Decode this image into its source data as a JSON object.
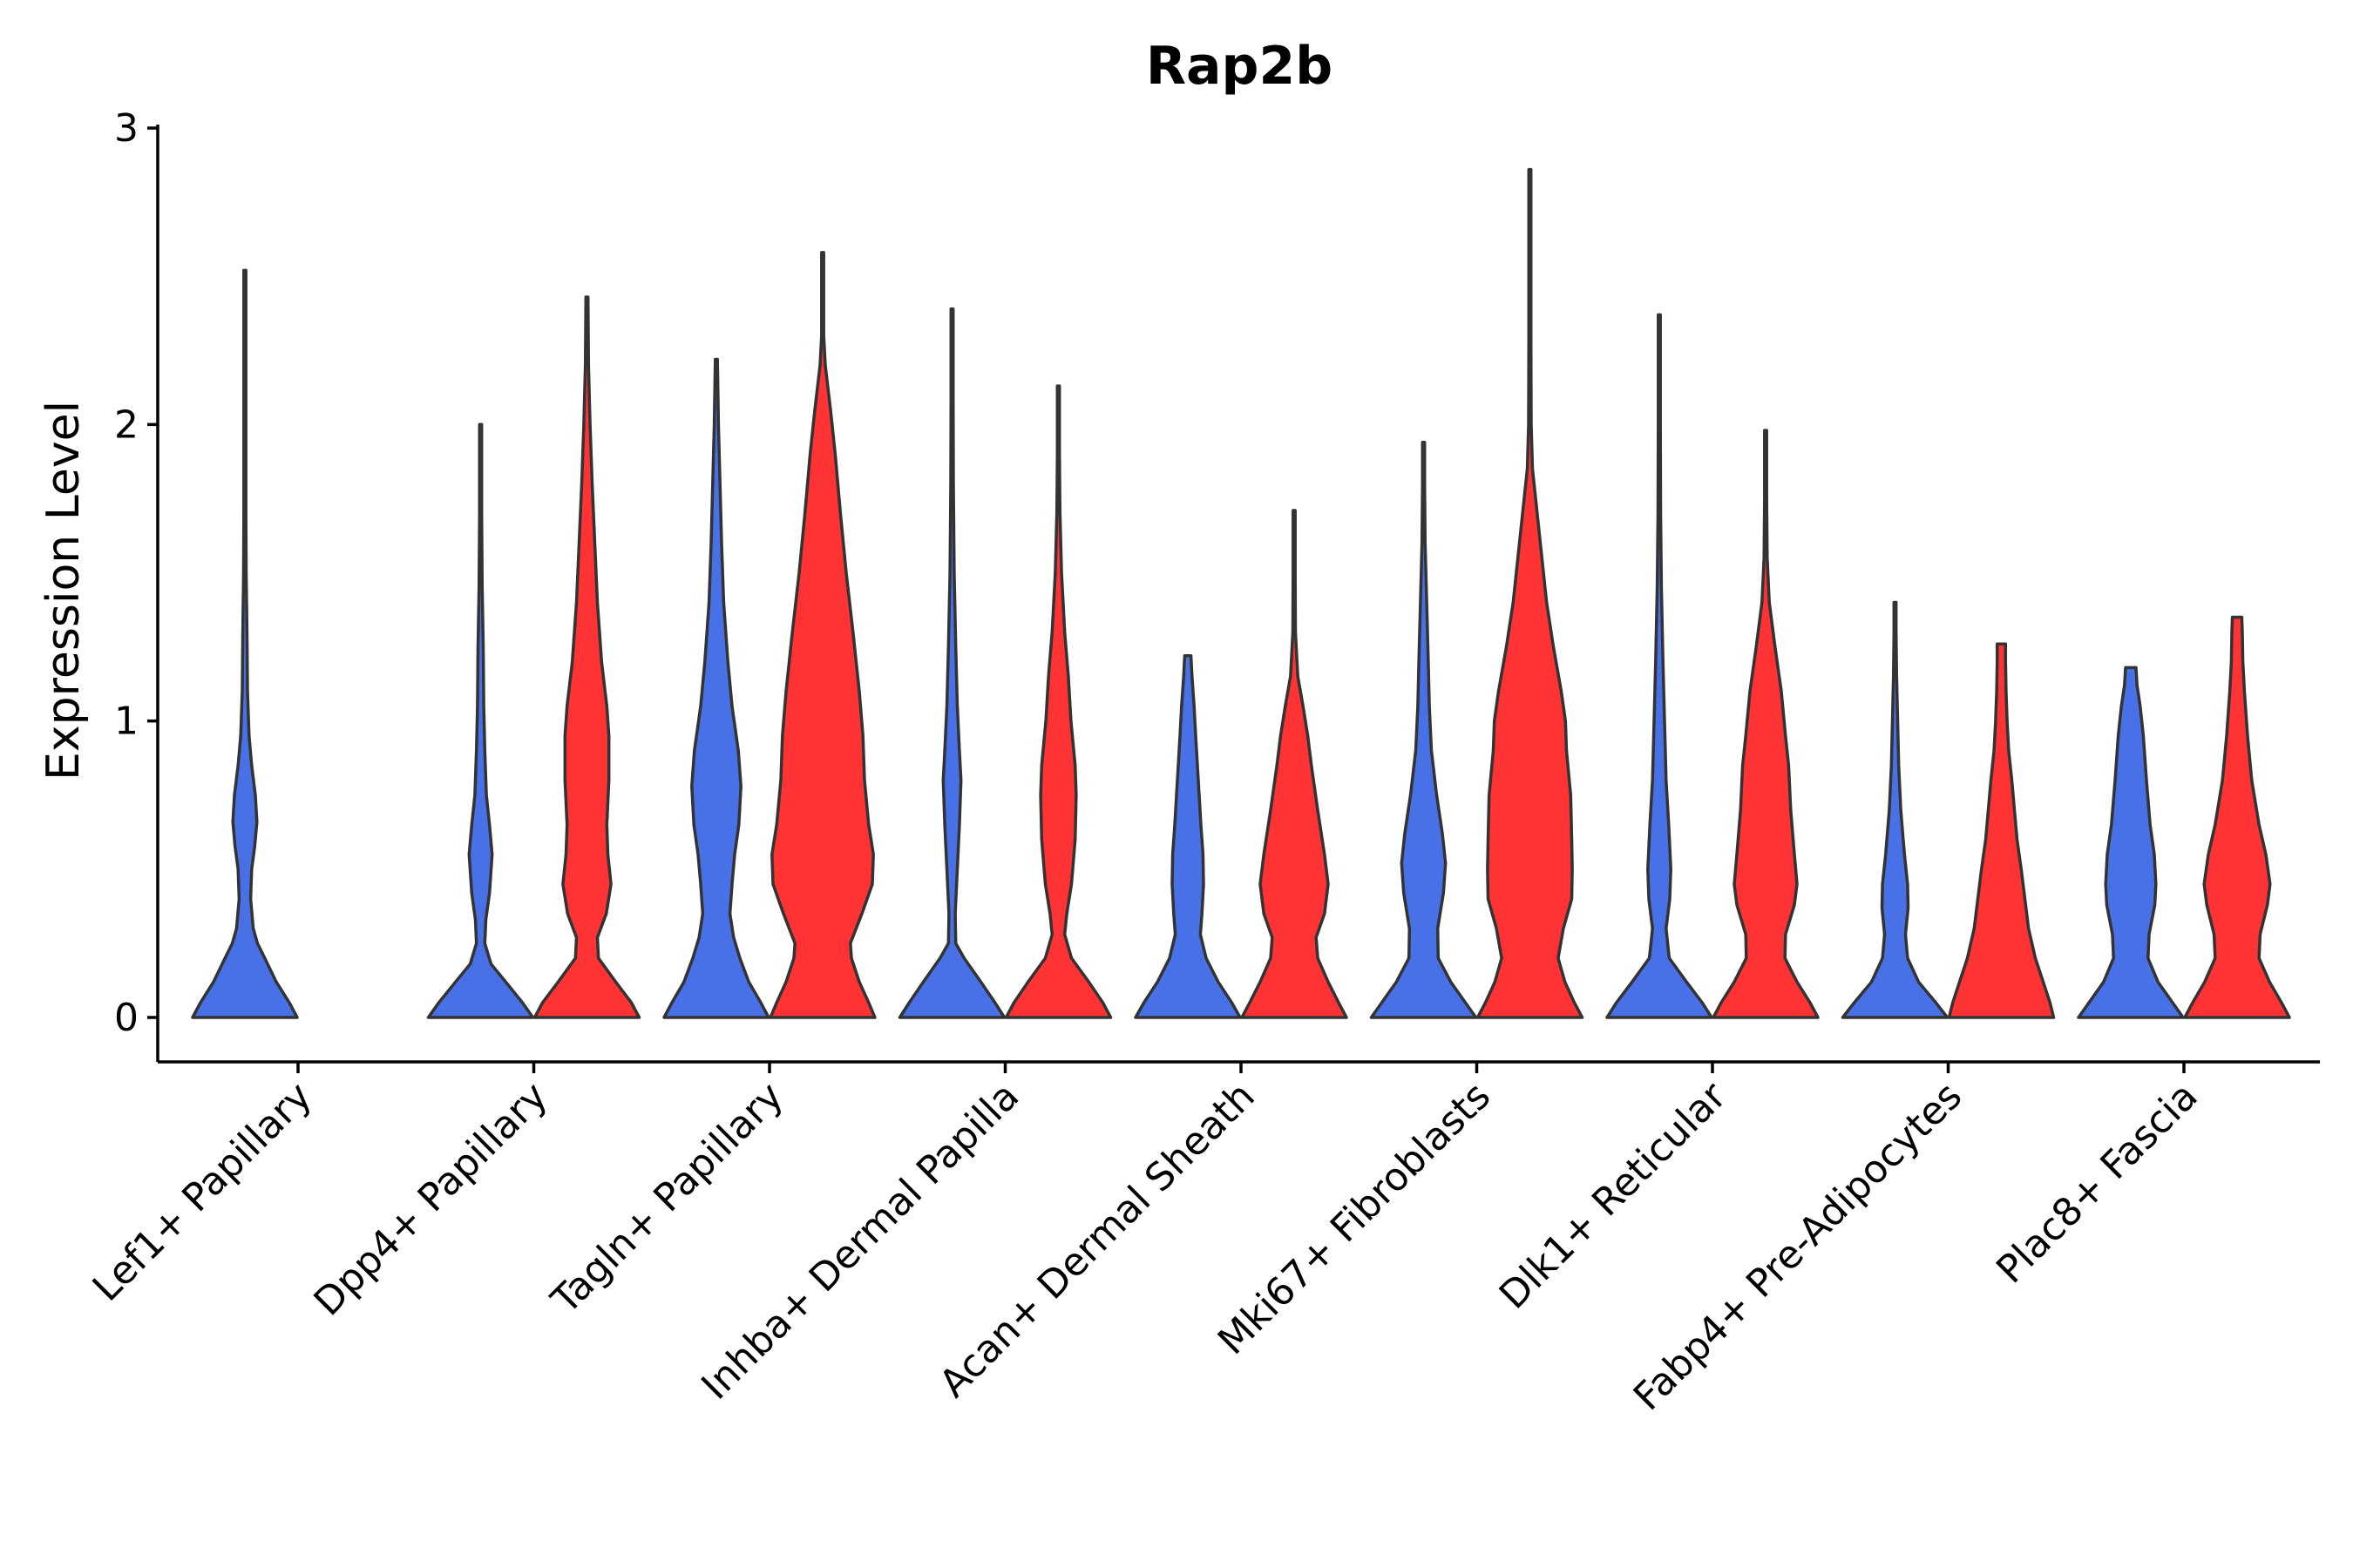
{
  "chart_data": {
    "type": "violin",
    "title": "Rap2b",
    "xlabel": "",
    "ylabel": "Expression Level",
    "ylim": [
      -0.15,
      3.05
    ],
    "yticks": [
      0,
      1,
      2,
      3
    ],
    "ytick_labels": [
      "0",
      "1",
      "2",
      "3"
    ],
    "legend": "none",
    "grid": false,
    "series": [
      {
        "name": "group 1",
        "color": "#4871E8"
      },
      {
        "name": "group 2",
        "color": "#FF3333"
      }
    ],
    "categories": [
      "Lef1+ Papillary",
      "Dpp4+ Papillary",
      "Tagln+ Papillary",
      "Inhba+ Dermal Papilla",
      "Acan+ Dermal Sheath",
      "Mki67+ Fibroblasts",
      "Dlk1+ Reticular",
      "Fabp4+ Pre-Adipocytes",
      "Plac8+ Fascia"
    ],
    "violins": [
      {
        "category": "Lef1+ Papillary",
        "series": "group 1",
        "max": 2.52,
        "profile": [
          [
            0,
            1.0
          ],
          [
            0.05,
            0.85
          ],
          [
            0.12,
            0.6
          ],
          [
            0.2,
            0.38
          ],
          [
            0.25,
            0.24
          ],
          [
            0.3,
            0.16
          ],
          [
            0.4,
            0.11
          ],
          [
            0.5,
            0.13
          ],
          [
            0.58,
            0.19
          ],
          [
            0.66,
            0.23
          ],
          [
            0.75,
            0.2
          ],
          [
            0.85,
            0.13
          ],
          [
            0.95,
            0.08
          ],
          [
            1.1,
            0.05
          ],
          [
            1.3,
            0.04
          ],
          [
            1.5,
            0.025
          ],
          [
            1.7,
            0.015
          ],
          [
            2.0,
            0.008
          ],
          [
            2.3,
            0.004
          ],
          [
            2.52,
            0.003
          ]
        ]
      },
      {
        "category": "Dpp4+ Papillary",
        "series": "group 1",
        "max": 2.0,
        "profile": [
          [
            0,
            1.0
          ],
          [
            0.05,
            0.8
          ],
          [
            0.12,
            0.48
          ],
          [
            0.18,
            0.2
          ],
          [
            0.25,
            0.08
          ],
          [
            0.33,
            0.1
          ],
          [
            0.42,
            0.17
          ],
          [
            0.55,
            0.22
          ],
          [
            0.65,
            0.17
          ],
          [
            0.75,
            0.11
          ],
          [
            0.9,
            0.08
          ],
          [
            1.05,
            0.06
          ],
          [
            1.25,
            0.05
          ],
          [
            1.45,
            0.03
          ],
          [
            1.7,
            0.015
          ],
          [
            2.0,
            0.004
          ]
        ]
      },
      {
        "category": "Dpp4+ Papillary",
        "series": "group 2",
        "max": 2.43,
        "profile": [
          [
            0,
            1.0
          ],
          [
            0.05,
            0.85
          ],
          [
            0.12,
            0.55
          ],
          [
            0.2,
            0.22
          ],
          [
            0.27,
            0.2
          ],
          [
            0.35,
            0.37
          ],
          [
            0.45,
            0.46
          ],
          [
            0.55,
            0.4
          ],
          [
            0.65,
            0.38
          ],
          [
            0.8,
            0.42
          ],
          [
            0.95,
            0.42
          ],
          [
            1.05,
            0.38
          ],
          [
            1.2,
            0.28
          ],
          [
            1.4,
            0.2
          ],
          [
            1.6,
            0.15
          ],
          [
            1.8,
            0.1
          ],
          [
            2.0,
            0.06
          ],
          [
            2.2,
            0.03
          ],
          [
            2.43,
            0.004
          ]
        ]
      },
      {
        "category": "Tagln+ Papillary",
        "series": "group 1",
        "max": 2.22,
        "profile": [
          [
            0,
            1.0
          ],
          [
            0.05,
            0.85
          ],
          [
            0.12,
            0.62
          ],
          [
            0.2,
            0.45
          ],
          [
            0.27,
            0.33
          ],
          [
            0.35,
            0.26
          ],
          [
            0.45,
            0.3
          ],
          [
            0.55,
            0.35
          ],
          [
            0.65,
            0.43
          ],
          [
            0.78,
            0.47
          ],
          [
            0.9,
            0.42
          ],
          [
            1.05,
            0.3
          ],
          [
            1.2,
            0.22
          ],
          [
            1.4,
            0.14
          ],
          [
            1.6,
            0.1
          ],
          [
            1.8,
            0.07
          ],
          [
            2.0,
            0.04
          ],
          [
            2.22,
            0.005
          ]
        ]
      },
      {
        "category": "Tagln+ Papillary",
        "series": "group 2",
        "max": 2.58,
        "profile": [
          [
            0,
            1.0
          ],
          [
            0.05,
            0.88
          ],
          [
            0.12,
            0.7
          ],
          [
            0.2,
            0.55
          ],
          [
            0.25,
            0.53
          ],
          [
            0.35,
            0.75
          ],
          [
            0.45,
            0.95
          ],
          [
            0.55,
            0.97
          ],
          [
            0.65,
            0.88
          ],
          [
            0.8,
            0.8
          ],
          [
            0.95,
            0.77
          ],
          [
            1.1,
            0.7
          ],
          [
            1.3,
            0.58
          ],
          [
            1.5,
            0.45
          ],
          [
            1.7,
            0.34
          ],
          [
            1.9,
            0.24
          ],
          [
            2.05,
            0.15
          ],
          [
            2.2,
            0.05
          ],
          [
            2.3,
            0.02
          ],
          [
            2.45,
            0.01
          ],
          [
            2.58,
            0.004
          ]
        ]
      },
      {
        "category": "Inhba+ Dermal Papilla",
        "series": "group 1",
        "max": 2.39,
        "profile": [
          [
            0,
            1.0
          ],
          [
            0.05,
            0.82
          ],
          [
            0.12,
            0.55
          ],
          [
            0.2,
            0.23
          ],
          [
            0.25,
            0.07
          ],
          [
            0.35,
            0.06
          ],
          [
            0.5,
            0.1
          ],
          [
            0.65,
            0.14
          ],
          [
            0.8,
            0.17
          ],
          [
            0.9,
            0.14
          ],
          [
            1.05,
            0.1
          ],
          [
            1.25,
            0.07
          ],
          [
            1.5,
            0.04
          ],
          [
            1.8,
            0.025
          ],
          [
            2.1,
            0.01
          ],
          [
            2.39,
            0.004
          ]
        ]
      },
      {
        "category": "Inhba+ Dermal Papilla",
        "series": "group 2",
        "max": 2.13,
        "profile": [
          [
            0,
            1.0
          ],
          [
            0.05,
            0.85
          ],
          [
            0.12,
            0.58
          ],
          [
            0.2,
            0.25
          ],
          [
            0.28,
            0.12
          ],
          [
            0.35,
            0.16
          ],
          [
            0.45,
            0.25
          ],
          [
            0.6,
            0.32
          ],
          [
            0.75,
            0.34
          ],
          [
            0.85,
            0.32
          ],
          [
            1.0,
            0.24
          ],
          [
            1.15,
            0.19
          ],
          [
            1.3,
            0.12
          ],
          [
            1.5,
            0.06
          ],
          [
            1.7,
            0.03
          ],
          [
            1.9,
            0.015
          ],
          [
            2.13,
            0.004
          ]
        ]
      },
      {
        "category": "Acan+ Dermal Sheath",
        "series": "group 1",
        "max": 1.22,
        "profile": [
          [
            0,
            1.0
          ],
          [
            0.05,
            0.84
          ],
          [
            0.12,
            0.58
          ],
          [
            0.2,
            0.35
          ],
          [
            0.28,
            0.24
          ],
          [
            0.35,
            0.27
          ],
          [
            0.45,
            0.3
          ],
          [
            0.55,
            0.29
          ],
          [
            0.65,
            0.25
          ],
          [
            0.8,
            0.2
          ],
          [
            0.95,
            0.15
          ],
          [
            1.05,
            0.12
          ],
          [
            1.15,
            0.08
          ],
          [
            1.22,
            0.06
          ]
        ]
      },
      {
        "category": "Acan+ Dermal Sheath",
        "series": "group 2",
        "max": 1.71,
        "profile": [
          [
            0,
            1.0
          ],
          [
            0.05,
            0.85
          ],
          [
            0.12,
            0.65
          ],
          [
            0.2,
            0.45
          ],
          [
            0.27,
            0.42
          ],
          [
            0.35,
            0.58
          ],
          [
            0.45,
            0.65
          ],
          [
            0.55,
            0.58
          ],
          [
            0.7,
            0.45
          ],
          [
            0.85,
            0.33
          ],
          [
            0.95,
            0.26
          ],
          [
            1.05,
            0.17
          ],
          [
            1.15,
            0.07
          ],
          [
            1.3,
            0.025
          ],
          [
            1.5,
            0.01
          ],
          [
            1.71,
            0.004
          ]
        ]
      },
      {
        "category": "Mki67+ Fibroblasts",
        "series": "group 1",
        "max": 1.94,
        "profile": [
          [
            0,
            1.0
          ],
          [
            0.05,
            0.8
          ],
          [
            0.12,
            0.52
          ],
          [
            0.2,
            0.28
          ],
          [
            0.3,
            0.27
          ],
          [
            0.42,
            0.38
          ],
          [
            0.52,
            0.42
          ],
          [
            0.62,
            0.36
          ],
          [
            0.75,
            0.25
          ],
          [
            0.9,
            0.15
          ],
          [
            1.05,
            0.11
          ],
          [
            1.2,
            0.09
          ],
          [
            1.4,
            0.06
          ],
          [
            1.6,
            0.03
          ],
          [
            1.8,
            0.015
          ],
          [
            1.94,
            0.004
          ]
        ]
      },
      {
        "category": "Mki67+ Fibroblasts",
        "series": "group 2",
        "max": 2.86,
        "profile": [
          [
            0,
            1.0
          ],
          [
            0.05,
            0.85
          ],
          [
            0.12,
            0.67
          ],
          [
            0.2,
            0.54
          ],
          [
            0.3,
            0.64
          ],
          [
            0.4,
            0.8
          ],
          [
            0.5,
            0.81
          ],
          [
            0.6,
            0.8
          ],
          [
            0.75,
            0.78
          ],
          [
            0.9,
            0.7
          ],
          [
            1.0,
            0.68
          ],
          [
            1.1,
            0.6
          ],
          [
            1.25,
            0.45
          ],
          [
            1.4,
            0.32
          ],
          [
            1.55,
            0.23
          ],
          [
            1.7,
            0.14
          ],
          [
            1.85,
            0.05
          ],
          [
            2.0,
            0.025
          ],
          [
            2.3,
            0.012
          ],
          [
            2.6,
            0.006
          ],
          [
            2.86,
            0.003
          ]
        ]
      },
      {
        "category": "Dlk1+ Reticular",
        "series": "group 1",
        "max": 2.37,
        "profile": [
          [
            0,
            1.0
          ],
          [
            0.05,
            0.82
          ],
          [
            0.12,
            0.52
          ],
          [
            0.2,
            0.19
          ],
          [
            0.3,
            0.13
          ],
          [
            0.4,
            0.2
          ],
          [
            0.5,
            0.22
          ],
          [
            0.65,
            0.18
          ],
          [
            0.8,
            0.13
          ],
          [
            1.0,
            0.1
          ],
          [
            1.2,
            0.07
          ],
          [
            1.45,
            0.04
          ],
          [
            1.7,
            0.025
          ],
          [
            2.0,
            0.012
          ],
          [
            2.37,
            0.004
          ]
        ]
      },
      {
        "category": "Dlk1+ Reticular",
        "series": "group 2",
        "max": 1.98,
        "profile": [
          [
            0,
            1.0
          ],
          [
            0.05,
            0.85
          ],
          [
            0.12,
            0.6
          ],
          [
            0.2,
            0.37
          ],
          [
            0.28,
            0.38
          ],
          [
            0.38,
            0.55
          ],
          [
            0.45,
            0.6
          ],
          [
            0.55,
            0.55
          ],
          [
            0.7,
            0.48
          ],
          [
            0.85,
            0.44
          ],
          [
            0.95,
            0.38
          ],
          [
            1.1,
            0.3
          ],
          [
            1.25,
            0.18
          ],
          [
            1.4,
            0.07
          ],
          [
            1.55,
            0.03
          ],
          [
            1.75,
            0.015
          ],
          [
            1.98,
            0.004
          ]
        ]
      },
      {
        "category": "Fabp4+ Pre-Adipocytes",
        "series": "group 1",
        "max": 1.4,
        "profile": [
          [
            0,
            1.0
          ],
          [
            0.05,
            0.78
          ],
          [
            0.12,
            0.45
          ],
          [
            0.2,
            0.24
          ],
          [
            0.28,
            0.2
          ],
          [
            0.37,
            0.25
          ],
          [
            0.45,
            0.24
          ],
          [
            0.55,
            0.18
          ],
          [
            0.7,
            0.11
          ],
          [
            0.85,
            0.07
          ],
          [
            1.0,
            0.05
          ],
          [
            1.15,
            0.03
          ],
          [
            1.3,
            0.015
          ],
          [
            1.4,
            0.005
          ]
        ]
      },
      {
        "category": "Fabp4+ Pre-Adipocytes",
        "series": "group 2",
        "max": 1.26,
        "profile": [
          [
            0,
            1.0
          ],
          [
            0.05,
            0.93
          ],
          [
            0.12,
            0.8
          ],
          [
            0.2,
            0.65
          ],
          [
            0.3,
            0.52
          ],
          [
            0.4,
            0.45
          ],
          [
            0.5,
            0.38
          ],
          [
            0.6,
            0.3
          ],
          [
            0.7,
            0.25
          ],
          [
            0.8,
            0.2
          ],
          [
            0.9,
            0.14
          ],
          [
            1.0,
            0.11
          ],
          [
            1.1,
            0.09
          ],
          [
            1.2,
            0.08
          ],
          [
            1.26,
            0.08
          ]
        ]
      },
      {
        "category": "Plac8+ Fascia",
        "series": "group 1",
        "max": 1.18,
        "profile": [
          [
            0,
            1.0
          ],
          [
            0.05,
            0.8
          ],
          [
            0.12,
            0.52
          ],
          [
            0.2,
            0.33
          ],
          [
            0.28,
            0.35
          ],
          [
            0.38,
            0.46
          ],
          [
            0.45,
            0.48
          ],
          [
            0.55,
            0.45
          ],
          [
            0.65,
            0.37
          ],
          [
            0.8,
            0.3
          ],
          [
            0.95,
            0.24
          ],
          [
            1.05,
            0.18
          ],
          [
            1.12,
            0.12
          ],
          [
            1.18,
            0.1
          ]
        ]
      },
      {
        "category": "Plac8+ Fascia",
        "series": "group 2",
        "max": 1.35,
        "profile": [
          [
            0,
            1.0
          ],
          [
            0.05,
            0.85
          ],
          [
            0.12,
            0.62
          ],
          [
            0.2,
            0.42
          ],
          [
            0.28,
            0.44
          ],
          [
            0.38,
            0.58
          ],
          [
            0.45,
            0.63
          ],
          [
            0.55,
            0.55
          ],
          [
            0.65,
            0.42
          ],
          [
            0.8,
            0.28
          ],
          [
            0.95,
            0.2
          ],
          [
            1.1,
            0.14
          ],
          [
            1.2,
            0.11
          ],
          [
            1.3,
            0.1
          ],
          [
            1.35,
            0.09
          ]
        ]
      }
    ]
  }
}
